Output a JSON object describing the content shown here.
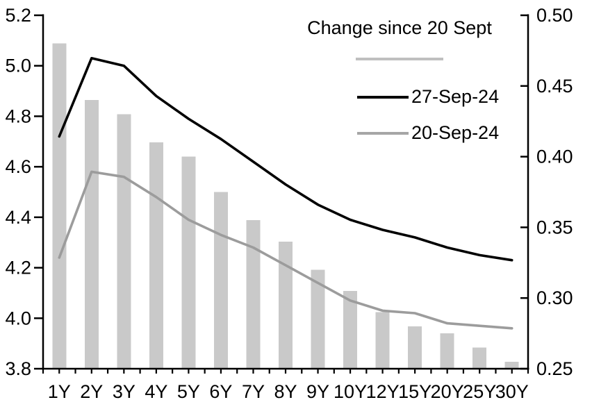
{
  "chart_data": {
    "type": "combo-bar-line",
    "title": "",
    "categories": [
      "1Y",
      "2Y",
      "3Y",
      "4Y",
      "5Y",
      "6Y",
      "7Y",
      "8Y",
      "9Y",
      "10Y",
      "12Y",
      "15Y",
      "20Y",
      "25Y",
      "30Y"
    ],
    "series": [
      {
        "name": "Change since 20 Sept",
        "type": "bar",
        "axis": "right",
        "color": "#c9c9c9",
        "values": [
          0.48,
          0.44,
          0.43,
          0.41,
          0.4,
          0.375,
          0.355,
          0.34,
          0.32,
          0.305,
          0.29,
          0.28,
          0.275,
          0.265,
          0.255
        ]
      },
      {
        "name": "27-Sep-24",
        "type": "line",
        "axis": "left",
        "color": "#000000",
        "values": [
          4.72,
          5.03,
          5.0,
          4.88,
          4.79,
          4.71,
          4.62,
          4.53,
          4.45,
          4.39,
          4.35,
          4.32,
          4.28,
          4.25,
          4.23
        ]
      },
      {
        "name": "20-Sep-24",
        "type": "line",
        "axis": "left",
        "color": "#9c9c9c",
        "values": [
          4.24,
          4.58,
          4.56,
          4.48,
          4.39,
          4.33,
          4.28,
          4.21,
          4.14,
          4.07,
          4.03,
          4.02,
          3.98,
          3.97,
          3.96
        ]
      }
    ],
    "left_axis": {
      "min": 3.8,
      "max": 5.2,
      "step": 0.2,
      "tick_labels": [
        "5.2",
        "5.0",
        "4.8",
        "4.6",
        "4.4",
        "4.2",
        "4.0",
        "3.8"
      ]
    },
    "right_axis": {
      "min": 0.25,
      "max": 0.5,
      "step": 0.05,
      "tick_labels": [
        "0.50",
        "0.45",
        "0.40",
        "0.35",
        "0.30",
        "0.25"
      ]
    },
    "grid": false,
    "bar_baseline": 0.25,
    "legend_position": "top-right-inside",
    "legend": {
      "title": "Change since 20 Sept",
      "arrow_color": "#bfbfbf",
      "entries": [
        {
          "label": "27-Sep-24",
          "color": "#000000"
        },
        {
          "label": "20-Sep-24",
          "color": "#a6a6a6"
        }
      ]
    }
  }
}
